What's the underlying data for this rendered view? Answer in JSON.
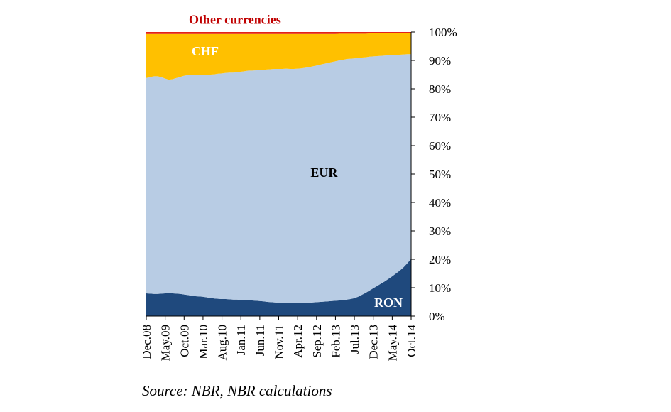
{
  "chart_data": {
    "type": "area",
    "stacked": true,
    "percent": true,
    "x": [
      "Dec.08",
      "Jan.09",
      "Feb.09",
      "Mar.09",
      "Apr.09",
      "May.09",
      "Jun.09",
      "Jul.09",
      "Aug.09",
      "Sep.09",
      "Oct.09",
      "Nov.09",
      "Dec.09",
      "Jan.10",
      "Feb.10",
      "Mar.10",
      "Apr.10",
      "May.10",
      "Jun.10",
      "Jul.10",
      "Aug.10",
      "Sep.10",
      "Oct.10",
      "Nov.10",
      "Dec.10",
      "Jan.11",
      "Feb.11",
      "Mar.11",
      "Apr.11",
      "May.11",
      "Jun.11",
      "Jul.11",
      "Aug.11",
      "Sep.11",
      "Oct.11",
      "Nov.11",
      "Dec.11",
      "Jan.12",
      "Feb.12",
      "Mar.12",
      "Apr.12",
      "May.12",
      "Jun.12",
      "Jul.12",
      "Aug.12",
      "Sep.12",
      "Oct.12",
      "Nov.12",
      "Dec.12",
      "Jan.13",
      "Feb.13",
      "Mar.13",
      "Apr.13",
      "May.13",
      "Jun.13",
      "Jul.13",
      "Aug.13",
      "Sep.13",
      "Oct.13",
      "Nov.13",
      "Dec.13",
      "Jan.14",
      "Feb.14",
      "Mar.14",
      "Apr.14",
      "May.14",
      "Jun.14",
      "Jul.14",
      "Aug.14",
      "Sep.14",
      "Oct.14"
    ],
    "x_tick_labels": [
      "Dec.08",
      "May.09",
      "Oct.09",
      "Mar.10",
      "Aug.10",
      "Jan.11",
      "Jun.11",
      "Nov.11",
      "Apr.12",
      "Sep.12",
      "Feb.13",
      "Jul.13",
      "Dec.13",
      "May.14",
      "Oct.14"
    ],
    "series": [
      {
        "name": "RON",
        "color": "#1f497d",
        "values": [
          8.0,
          7.9,
          7.8,
          7.8,
          7.9,
          8.0,
          8.0,
          8.0,
          7.9,
          7.8,
          7.6,
          7.4,
          7.2,
          7.0,
          6.9,
          6.8,
          6.6,
          6.4,
          6.2,
          6.1,
          6.0,
          6.0,
          5.9,
          5.8,
          5.8,
          5.7,
          5.6,
          5.6,
          5.5,
          5.4,
          5.3,
          5.2,
          5.0,
          4.9,
          4.8,
          4.7,
          4.6,
          4.6,
          4.5,
          4.5,
          4.5,
          4.5,
          4.6,
          4.7,
          4.8,
          4.9,
          5.0,
          5.1,
          5.2,
          5.3,
          5.4,
          5.5,
          5.6,
          5.8,
          6.0,
          6.3,
          6.8,
          7.5,
          8.2,
          9.0,
          9.8,
          10.6,
          11.4,
          12.2,
          13.1,
          14.0,
          15.0,
          16.0,
          17.2,
          18.6,
          20.2
        ]
      },
      {
        "name": "EUR",
        "color": "#b8cce4",
        "values": [
          75.8,
          76.2,
          76.6,
          76.6,
          76.2,
          75.6,
          75.2,
          75.4,
          75.9,
          76.4,
          77.0,
          77.4,
          77.7,
          78.0,
          78.1,
          78.2,
          78.3,
          78.6,
          78.9,
          79.2,
          79.4,
          79.6,
          79.8,
          79.9,
          80.0,
          80.3,
          80.6,
          80.8,
          80.9,
          81.1,
          81.3,
          81.5,
          81.8,
          82.0,
          82.2,
          82.3,
          82.4,
          82.5,
          82.5,
          82.5,
          82.6,
          82.7,
          82.8,
          82.9,
          83.1,
          83.3,
          83.5,
          83.7,
          83.9,
          84.1,
          84.3,
          84.5,
          84.6,
          84.7,
          84.6,
          84.4,
          84.0,
          83.5,
          82.9,
          82.3,
          81.6,
          80.9,
          80.2,
          79.5,
          78.7,
          77.8,
          76.9,
          76.0,
          74.9,
          73.6,
          72.0
        ]
      },
      {
        "name": "CHF",
        "color": "#ffc000",
        "values": [
          15.5,
          15.2,
          14.9,
          14.9,
          15.2,
          15.7,
          16.1,
          15.9,
          15.5,
          15.1,
          14.7,
          14.5,
          14.4,
          14.3,
          14.3,
          14.3,
          14.4,
          14.3,
          14.2,
          14.0,
          13.9,
          13.7,
          13.6,
          13.6,
          13.5,
          13.3,
          13.1,
          12.9,
          12.9,
          12.8,
          12.7,
          12.6,
          12.5,
          12.4,
          12.3,
          12.3,
          12.3,
          12.2,
          12.3,
          12.3,
          12.2,
          12.1,
          11.9,
          11.7,
          11.4,
          11.1,
          10.8,
          10.5,
          10.2,
          9.9,
          9.6,
          9.4,
          9.2,
          8.9,
          8.8,
          8.7,
          8.6,
          8.4,
          8.3,
          8.2,
          8.1,
          8.0,
          7.9,
          7.8,
          7.7,
          7.7,
          7.6,
          7.5,
          7.4,
          7.3,
          7.3
        ]
      },
      {
        "name": "Other currencies",
        "color": "#e32119",
        "values": [
          0.7,
          0.7,
          0.7,
          0.7,
          0.7,
          0.7,
          0.7,
          0.7,
          0.7,
          0.7,
          0.7,
          0.7,
          0.7,
          0.7,
          0.7,
          0.7,
          0.7,
          0.7,
          0.7,
          0.7,
          0.7,
          0.7,
          0.7,
          0.7,
          0.7,
          0.7,
          0.7,
          0.7,
          0.7,
          0.7,
          0.7,
          0.7,
          0.7,
          0.7,
          0.7,
          0.7,
          0.7,
          0.7,
          0.7,
          0.7,
          0.7,
          0.7,
          0.7,
          0.7,
          0.7,
          0.7,
          0.7,
          0.7,
          0.7,
          0.7,
          0.7,
          0.6,
          0.6,
          0.6,
          0.6,
          0.6,
          0.6,
          0.6,
          0.6,
          0.5,
          0.5,
          0.5,
          0.5,
          0.5,
          0.5,
          0.5,
          0.5,
          0.5,
          0.5,
          0.5,
          0.5
        ]
      }
    ],
    "ylim": [
      0,
      100
    ],
    "y_tick_labels": [
      "0%",
      "10%",
      "20%",
      "30%",
      "40%",
      "50%",
      "60%",
      "70%",
      "80%",
      "90%",
      "100%"
    ],
    "y_axis_side": "right",
    "grid": false,
    "legend": "none",
    "series_labels": [
      {
        "text": "Other currencies",
        "color": "#c00000"
      },
      {
        "text": "CHF",
        "color": "#ffffff"
      },
      {
        "text": "EUR",
        "color": "#000000"
      },
      {
        "text": "RON",
        "color": "#ffffff"
      }
    ]
  },
  "source_note": "Source: NBR, NBR calculations"
}
